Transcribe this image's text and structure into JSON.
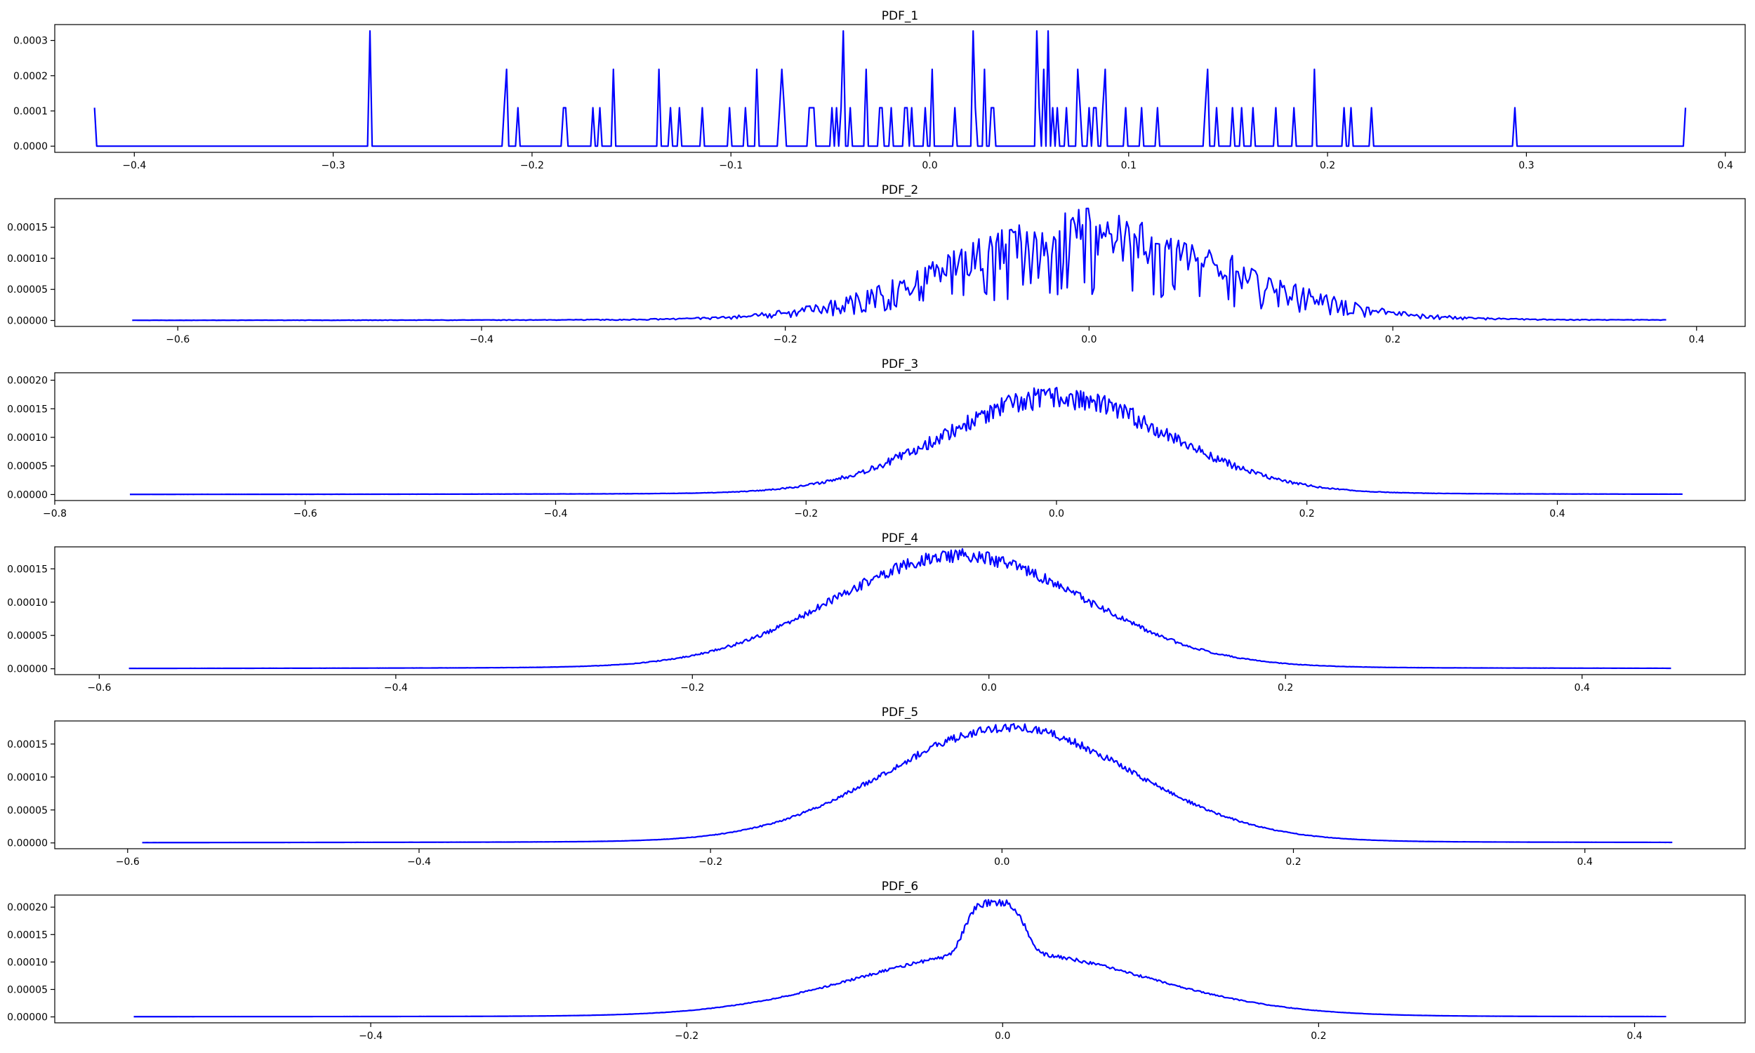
{
  "colors": {
    "series": "#0000ff",
    "axes": "#000000",
    "background": "#ffffff"
  },
  "chart_data": [
    {
      "type": "line",
      "title": "PDF_1",
      "xlabel": "",
      "ylabel": "",
      "xlim": [
        -0.44,
        0.41
      ],
      "ylim": [
        -1.75e-05,
        0.000345
      ],
      "xticks": [
        -0.4,
        -0.3,
        -0.2,
        -0.1,
        0.0,
        0.1,
        0.2,
        0.3,
        0.4
      ],
      "xtick_labels": [
        "−0.4",
        "−0.3",
        "−0.2",
        "−0.1",
        "0.0",
        "0.1",
        "0.2",
        "0.3",
        "0.4"
      ],
      "yticks": [
        0,
        0.0001,
        0.0002,
        0.0003
      ],
      "ytick_labels": [
        "0.0000",
        "0.0001",
        "0.0002",
        "0.0003"
      ],
      "grid": false,
      "series": [
        {
          "points": []
        }
      ],
      "profile": "sparse",
      "x_range": [
        -0.42,
        0.38
      ],
      "y_quantum": 0.000109,
      "seed": 11
    },
    {
      "type": "line",
      "title": "PDF_2",
      "xlabel": "",
      "ylabel": "",
      "xlim": [
        -0.681,
        0.432
      ],
      "ylim": [
        -9.6e-06,
        0.000196
      ],
      "xticks": [
        -0.6,
        -0.4,
        -0.2,
        0.0,
        0.2,
        0.4
      ],
      "xtick_labels": [
        "−0.6",
        "−0.4",
        "−0.2",
        "0.0",
        "0.2",
        "0.4"
      ],
      "yticks": [
        0,
        5e-05,
        0.0001,
        0.00015
      ],
      "ytick_labels": [
        "0.00000",
        "0.00005",
        "0.00010",
        "0.00015"
      ],
      "grid": false,
      "series": [
        {
          "points": []
        }
      ],
      "profile": "noisy",
      "x_range": [
        -0.63,
        0.38
      ],
      "peak": 0.000135,
      "center": 0.0,
      "sigma": 0.09,
      "noise": 0.32,
      "seed": 23
    },
    {
      "type": "line",
      "title": "PDF_3",
      "xlabel": "",
      "ylabel": "",
      "xlim": [
        -0.8,
        0.55
      ],
      "ylim": [
        -1.05e-05,
        0.000213
      ],
      "xticks": [
        -0.8,
        -0.6,
        -0.4,
        -0.2,
        0.0,
        0.2,
        0.4
      ],
      "xtick_labels": [
        "−0.8",
        "−0.6",
        "−0.4",
        "−0.2",
        "0.0",
        "0.2",
        "0.4"
      ],
      "yticks": [
        0,
        5e-05,
        0.0001,
        0.00015,
        0.0002
      ],
      "ytick_labels": [
        "0.00000",
        "0.00005",
        "0.00010",
        "0.00015",
        "0.00020"
      ],
      "grid": false,
      "series": [
        {
          "points": []
        }
      ],
      "profile": "noisy",
      "x_range": [
        -0.74,
        0.5
      ],
      "peak": 0.000165,
      "center": 0.0,
      "sigma": 0.09,
      "noise": 0.12,
      "seed": 37
    },
    {
      "type": "line",
      "title": "PDF_4",
      "xlabel": "",
      "ylabel": "",
      "xlim": [
        -0.63,
        0.51
      ],
      "ylim": [
        -8.8e-06,
        0.000183
      ],
      "xticks": [
        -0.6,
        -0.4,
        -0.2,
        0.0,
        0.2,
        0.4
      ],
      "xtick_labels": [
        "−0.6",
        "−0.4",
        "−0.2",
        "0.0",
        "0.2",
        "0.4"
      ],
      "yticks": [
        0,
        5e-05,
        0.0001,
        0.00015
      ],
      "ytick_labels": [
        "0.00000",
        "0.00005",
        "0.00010",
        "0.00015"
      ],
      "grid": false,
      "series": [
        {
          "points": []
        }
      ],
      "profile": "noisy",
      "x_range": [
        -0.58,
        0.46
      ],
      "peak": 0.000165,
      "center": -0.02,
      "sigma": 0.085,
      "noise": 0.06,
      "seed": 41
    },
    {
      "type": "line",
      "title": "PDF_5",
      "xlabel": "",
      "ylabel": "",
      "xlim": [
        -0.65,
        0.51
      ],
      "ylim": [
        -8.8e-06,
        0.000185
      ],
      "xticks": [
        -0.6,
        -0.4,
        -0.2,
        0.0,
        0.2,
        0.4
      ],
      "xtick_labels": [
        "−0.6",
        "−0.4",
        "−0.2",
        "0.0",
        "0.2",
        "0.4"
      ],
      "yticks": [
        0,
        5e-05,
        0.0001,
        0.00015
      ],
      "ytick_labels": [
        "0.00000",
        "0.00005",
        "0.00010",
        "0.00015"
      ],
      "grid": false,
      "series": [
        {
          "points": []
        }
      ],
      "profile": "noisy",
      "x_range": [
        -0.59,
        0.46
      ],
      "peak": 0.00017,
      "center": 0.005,
      "sigma": 0.085,
      "noise": 0.04,
      "seed": 53
    },
    {
      "type": "line",
      "title": "PDF_6",
      "xlabel": "",
      "ylabel": "",
      "xlim": [
        -0.6,
        0.47
      ],
      "ylim": [
        -1.08e-05,
        0.000222
      ],
      "xticks": [
        -0.4,
        -0.2,
        0.0,
        0.2,
        0.4
      ],
      "xtick_labels": [
        "−0.4",
        "−0.2",
        "0.0",
        "0.2",
        "0.4"
      ],
      "yticks": [
        0,
        5e-05,
        0.0001,
        0.00015,
        0.0002
      ],
      "ytick_labels": [
        "0.00000",
        "0.00005",
        "0.00010",
        "0.00015",
        "0.00020"
      ],
      "grid": false,
      "series": [
        {
          "points": []
        }
      ],
      "profile": "spiked",
      "x_range": [
        -0.55,
        0.42
      ],
      "peak": 0.000115,
      "center": 0.0,
      "sigma": 0.09,
      "spike_peak": 0.000205,
      "spike_center": -0.005,
      "spike_width": 0.018,
      "noise": 0.03,
      "seed": 67
    }
  ]
}
